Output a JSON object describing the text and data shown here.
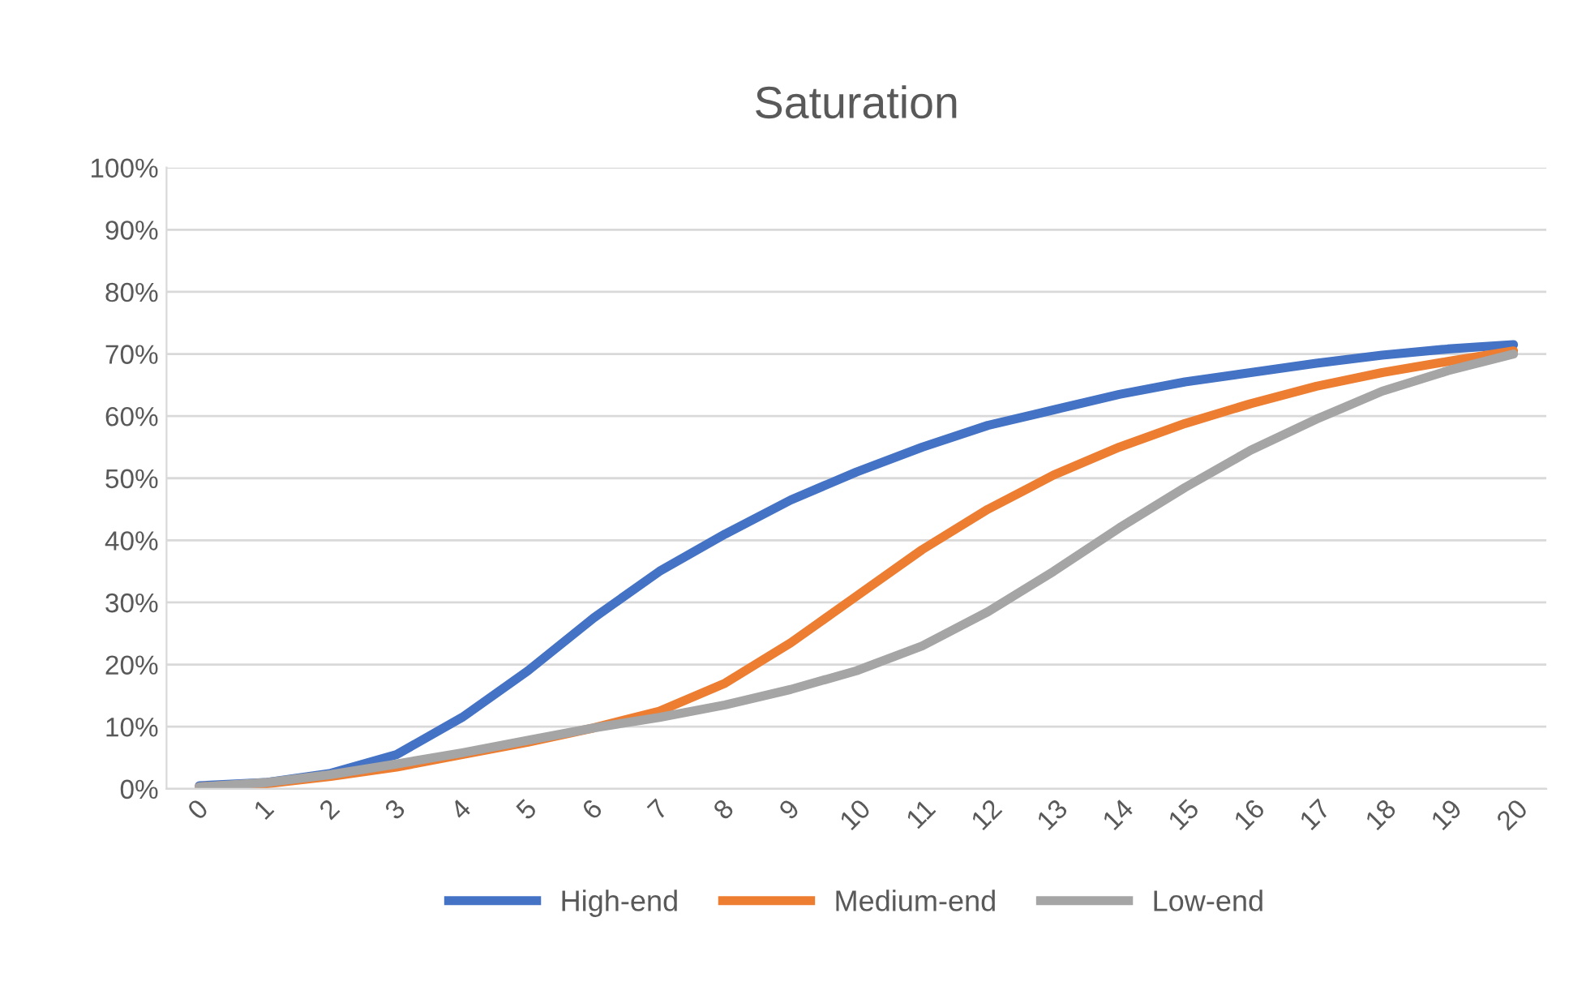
{
  "chart_data": {
    "type": "line",
    "title": "Saturation",
    "categories": [
      "0",
      "1",
      "2",
      "3",
      "4",
      "5",
      "6",
      "7",
      "8",
      "9",
      "10",
      "11",
      "12",
      "13",
      "14",
      "15",
      "16",
      "17",
      "18",
      "19",
      "20"
    ],
    "series": [
      {
        "name": "High-end",
        "color": "#4472c4",
        "values": [
          0.5,
          1,
          2.5,
          5.5,
          11.5,
          19,
          27.5,
          35,
          41,
          46.5,
          51,
          55,
          58.5,
          61,
          63.5,
          65.5,
          67,
          68.5,
          69.8,
          70.8,
          71.5
        ]
      },
      {
        "name": "Medium-end",
        "color": "#ed7d31",
        "values": [
          0.3,
          0.8,
          2,
          3.5,
          5.5,
          7.5,
          9.8,
          12.5,
          17,
          23.5,
          31,
          38.5,
          45,
          50.5,
          55,
          58.8,
          62,
          64.8,
          67,
          68.8,
          70.5
        ]
      },
      {
        "name": "Low-end",
        "color": "#a5a5a5",
        "values": [
          0.3,
          1,
          2.3,
          4,
          5.8,
          7.8,
          9.8,
          11.5,
          13.5,
          16,
          19,
          23,
          28.5,
          35,
          42,
          48.5,
          54.5,
          59.5,
          64,
          67.3,
          70
        ]
      }
    ],
    "ylim": [
      0,
      100
    ],
    "yticks": [
      {
        "value": 0,
        "label": "0%"
      },
      {
        "value": 10,
        "label": "10%"
      },
      {
        "value": 20,
        "label": "20%"
      },
      {
        "value": 30,
        "label": "30%"
      },
      {
        "value": 40,
        "label": "40%"
      },
      {
        "value": 50,
        "label": "50%"
      },
      {
        "value": 60,
        "label": "60%"
      },
      {
        "value": 70,
        "label": "70%"
      },
      {
        "value": 80,
        "label": "80%"
      },
      {
        "value": 90,
        "label": "90%"
      },
      {
        "value": 100,
        "label": "100%"
      }
    ],
    "grid": "y",
    "legend": "bottom",
    "marker": "none",
    "line_style": "solid"
  }
}
